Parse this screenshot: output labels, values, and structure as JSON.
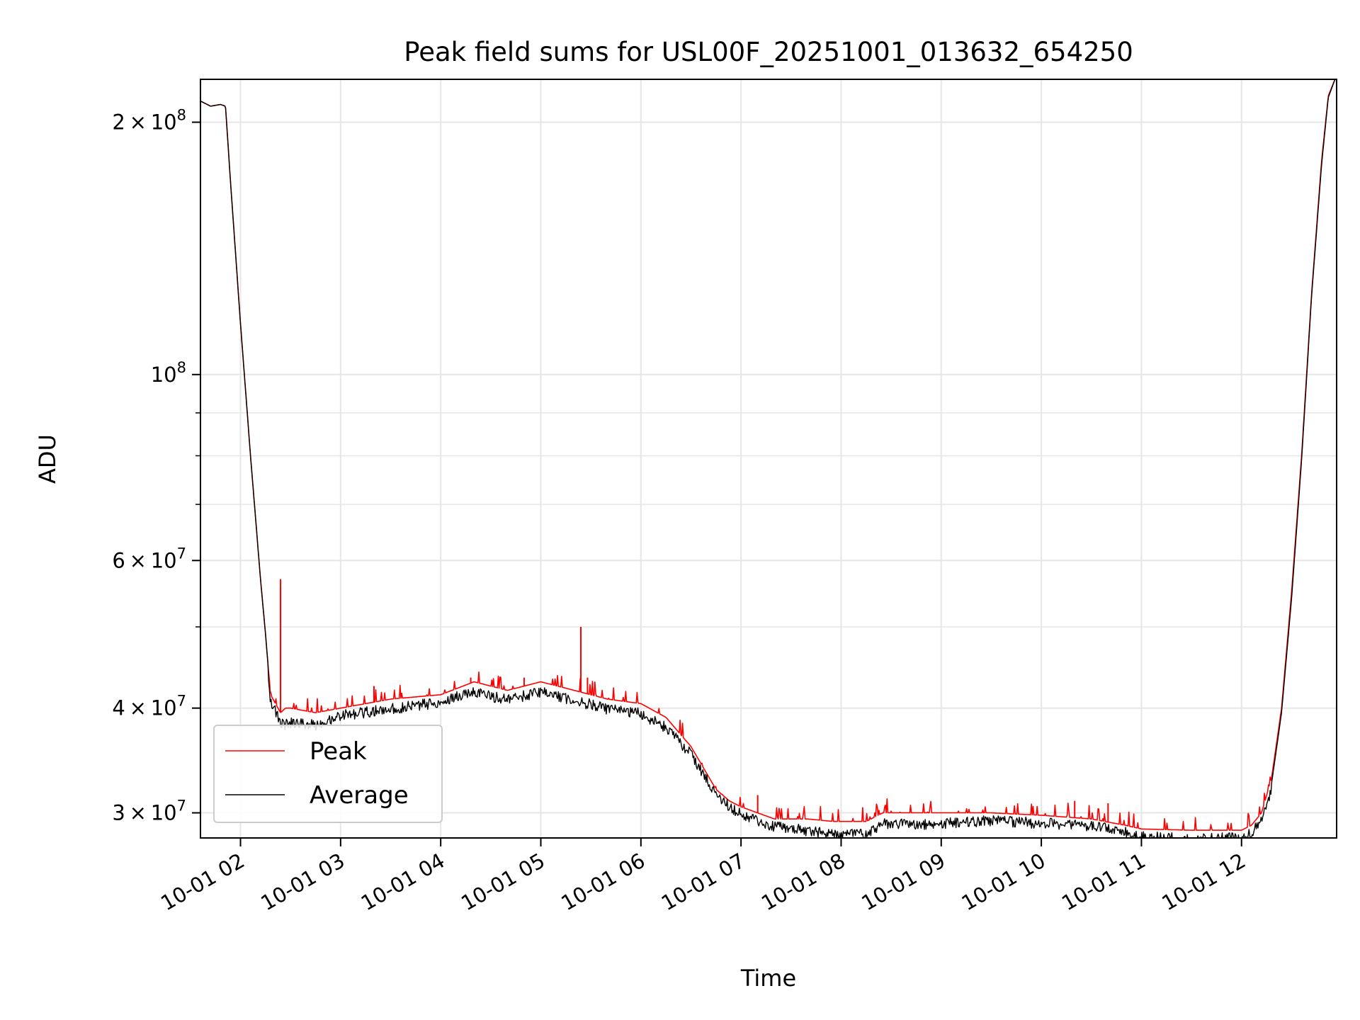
{
  "chart_data": {
    "type": "line",
    "title": "Peak field sums for USL00F_20251001_013632_654250",
    "xlabel": "Time",
    "ylabel": "ADU",
    "yscale": "log",
    "xlim": [
      "2025-10-01 01:36",
      "2025-10-01 12:57"
    ],
    "ylim": [
      28000000,
      225000000
    ],
    "grid": true,
    "legend_position": "lower-left",
    "x_ticks": [
      {
        "value": "2025-10-01 02:00",
        "label": "10-01 02"
      },
      {
        "value": "2025-10-01 03:00",
        "label": "10-01 03"
      },
      {
        "value": "2025-10-01 04:00",
        "label": "10-01 04"
      },
      {
        "value": "2025-10-01 05:00",
        "label": "10-01 05"
      },
      {
        "value": "2025-10-01 06:00",
        "label": "10-01 06"
      },
      {
        "value": "2025-10-01 07:00",
        "label": "10-01 07"
      },
      {
        "value": "2025-10-01 08:00",
        "label": "10-01 08"
      },
      {
        "value": "2025-10-01 09:00",
        "label": "10-01 09"
      },
      {
        "value": "2025-10-01 10:00",
        "label": "10-01 10"
      },
      {
        "value": "2025-10-01 11:00",
        "label": "10-01 11"
      },
      {
        "value": "2025-10-01 12:00",
        "label": "10-01 12"
      }
    ],
    "y_major_ticks": [
      {
        "value": 200000000,
        "mant": "2",
        "exp": "8"
      },
      {
        "value": 100000000,
        "mant": "",
        "exp": "8"
      },
      {
        "value": 60000000,
        "mant": "6",
        "exp": "7"
      },
      {
        "value": 40000000,
        "mant": "4",
        "exp": "7"
      },
      {
        "value": 30000000,
        "mant": "3",
        "exp": "7"
      }
    ],
    "y_minor_ticks": [
      50000000,
      70000000,
      80000000,
      90000000
    ],
    "series": [
      {
        "name": "Peak",
        "color": "#ff0000",
        "x": [
          "2025-10-01 01:36",
          "2025-10-01 01:42",
          "2025-10-01 01:48",
          "2025-10-01 01:51",
          "2025-10-01 01:54",
          "2025-10-01 02:00",
          "2025-10-01 02:06",
          "2025-10-01 02:12",
          "2025-10-01 02:15",
          "2025-10-01 02:18",
          "2025-10-01 02:24",
          "2025-10-01 02:27",
          "2025-10-01 02:30",
          "2025-10-01 02:45",
          "2025-10-01 03:00",
          "2025-10-01 03:30",
          "2025-10-01 04:00",
          "2025-10-01 04:20",
          "2025-10-01 04:40",
          "2025-10-01 05:00",
          "2025-10-01 05:20",
          "2025-10-01 05:40",
          "2025-10-01 06:00",
          "2025-10-01 06:15",
          "2025-10-01 06:30",
          "2025-10-01 06:45",
          "2025-10-01 06:53",
          "2025-10-01 07:00",
          "2025-10-01 07:20",
          "2025-10-01 07:40",
          "2025-10-01 07:55",
          "2025-10-01 08:15",
          "2025-10-01 08:25",
          "2025-10-01 08:40",
          "2025-10-01 09:00",
          "2025-10-01 09:30",
          "2025-10-01 10:00",
          "2025-10-01 10:30",
          "2025-10-01 10:50",
          "2025-10-01 11:00",
          "2025-10-01 11:30",
          "2025-10-01 12:00",
          "2025-10-01 12:06",
          "2025-10-01 12:12",
          "2025-10-01 12:18",
          "2025-10-01 12:24",
          "2025-10-01 12:30",
          "2025-10-01 12:36",
          "2025-10-01 12:42",
          "2025-10-01 12:48",
          "2025-10-01 12:52",
          "2025-10-01 12:56"
        ],
        "y": [
          212000000,
          209000000,
          210000000,
          209000000,
          170000000,
          115000000,
          80000000,
          57000000,
          49000000,
          41500000,
          39500000,
          40000000,
          40000000,
          39500000,
          40000000,
          41000000,
          41500000,
          43000000,
          42000000,
          43000000,
          42000000,
          41000000,
          40500000,
          39000000,
          36000000,
          32000000,
          31000000,
          30500000,
          29500000,
          29500000,
          29300000,
          29300000,
          30000000,
          30000000,
          30000000,
          30000000,
          29800000,
          29500000,
          29000000,
          28700000,
          28600000,
          28600000,
          29000000,
          30000000,
          33000000,
          40000000,
          55000000,
          80000000,
          125000000,
          180000000,
          215000000,
          225000000
        ],
        "spikes": [
          {
            "x": "2025-10-01 02:24",
            "y": 57000000
          },
          {
            "x": "2025-10-01 05:24",
            "y": 50000000
          },
          {
            "x": "2025-10-01 05:28",
            "y": 43500000
          },
          {
            "x": "2025-10-01 03:20",
            "y": 42500000
          },
          {
            "x": "2025-10-01 04:18",
            "y": 43500000
          },
          {
            "x": "2025-10-01 04:50",
            "y": 43500000
          },
          {
            "x": "2025-10-01 07:10",
            "y": 31500000
          },
          {
            "x": "2025-10-01 10:20",
            "y": 31000000
          },
          {
            "x": "2025-10-01 10:40",
            "y": 30800000
          }
        ]
      },
      {
        "name": "Average",
        "color": "#000000",
        "x": [
          "2025-10-01 01:36",
          "2025-10-01 01:42",
          "2025-10-01 01:48",
          "2025-10-01 01:51",
          "2025-10-01 01:54",
          "2025-10-01 02:00",
          "2025-10-01 02:06",
          "2025-10-01 02:12",
          "2025-10-01 02:15",
          "2025-10-01 02:18",
          "2025-10-01 02:24",
          "2025-10-01 02:27",
          "2025-10-01 02:30",
          "2025-10-01 02:45",
          "2025-10-01 03:00",
          "2025-10-01 03:30",
          "2025-10-01 04:00",
          "2025-10-01 04:20",
          "2025-10-01 04:40",
          "2025-10-01 05:00",
          "2025-10-01 05:20",
          "2025-10-01 05:40",
          "2025-10-01 06:00",
          "2025-10-01 06:15",
          "2025-10-01 06:30",
          "2025-10-01 06:45",
          "2025-10-01 06:53",
          "2025-10-01 07:00",
          "2025-10-01 07:20",
          "2025-10-01 07:40",
          "2025-10-01 07:55",
          "2025-10-01 08:15",
          "2025-10-01 08:25",
          "2025-10-01 08:40",
          "2025-10-01 09:00",
          "2025-10-01 09:30",
          "2025-10-01 10:00",
          "2025-10-01 10:30",
          "2025-10-01 10:50",
          "2025-10-01 11:00",
          "2025-10-01 11:30",
          "2025-10-01 12:00",
          "2025-10-01 12:06",
          "2025-10-01 12:12",
          "2025-10-01 12:18",
          "2025-10-01 12:24",
          "2025-10-01 12:30",
          "2025-10-01 12:36",
          "2025-10-01 12:42",
          "2025-10-01 12:48",
          "2025-10-01 12:52",
          "2025-10-01 12:56"
        ],
        "y": [
          212000000,
          209000000,
          210000000,
          209000000,
          170000000,
          115000000,
          80000000,
          57000000,
          49000000,
          41500000,
          39000000,
          38800000,
          39000000,
          38800000,
          39800000,
          40500000,
          41300000,
          42500000,
          41500000,
          42500000,
          41500000,
          40500000,
          40000000,
          38500000,
          35800000,
          32000000,
          31000000,
          30300000,
          29300000,
          29000000,
          28700000,
          28800000,
          29600000,
          29500000,
          29600000,
          29800000,
          29600000,
          29400000,
          28900000,
          28500000,
          28400000,
          28400000,
          28800000,
          29800000,
          32500000,
          39500000,
          54000000,
          79000000,
          124000000,
          178000000,
          214000000,
          225000000
        ]
      }
    ]
  }
}
